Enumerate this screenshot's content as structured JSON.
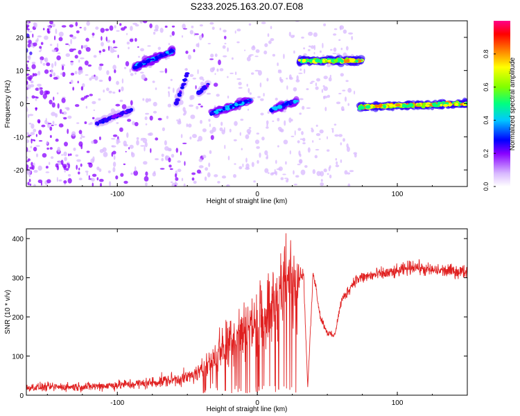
{
  "title": "S233.2025.163.20.07.E08",
  "colors": {
    "snr_line": "#e02020",
    "colormap": [
      "#ffffff",
      "#d8b8ff",
      "#8800ff",
      "#2b00ff",
      "#0000ff",
      "#00c8ff",
      "#00ff80",
      "#80ff00",
      "#ffff00",
      "#ff8000",
      "#ff0000",
      "#ff0088"
    ]
  },
  "chart_data": [
    {
      "type": "heatmap",
      "xlabel": "Height of straight line (km)",
      "ylabel": "Frequency (Hz)",
      "xlim": [
        -165,
        150
      ],
      "ylim": [
        -25,
        25
      ],
      "x_ticks": [
        -100,
        0,
        100
      ],
      "y_ticks": [
        -20,
        -10,
        0,
        10,
        20
      ],
      "colorbar": {
        "label": "Normalized spectral amplitude",
        "range": [
          0,
          1
        ],
        "ticks": [
          "0.0",
          "0.2",
          "0.4",
          "0.6",
          "0.8"
        ]
      },
      "features": [
        {
          "x": [
            -115,
            -90
          ],
          "y": [
            -6,
            -2
          ],
          "amplitude": 0.35
        },
        {
          "x": [
            -88,
            -60
          ],
          "y": [
            11,
            16
          ],
          "amplitude": 0.45
        },
        {
          "x": [
            -58,
            -50
          ],
          "y": [
            0,
            9
          ],
          "amplitude": 0.35
        },
        {
          "x": [
            -42,
            -35
          ],
          "y": [
            3,
            6
          ],
          "amplitude": 0.35
        },
        {
          "x": [
            -33,
            -5
          ],
          "y": [
            -3,
            1
          ],
          "amplitude": 0.5
        },
        {
          "x": [
            10,
            28
          ],
          "y": [
            -2,
            1
          ],
          "amplitude": 0.45
        },
        {
          "x": [
            30,
            75
          ],
          "y": [
            13,
            13
          ],
          "amplitude": 0.85
        },
        {
          "x": [
            73,
            150
          ],
          "y": [
            -1,
            0
          ],
          "amplitude": 0.85
        }
      ]
    },
    {
      "type": "line",
      "xlabel": "Height of straight line (km)",
      "ylabel": "SNR (10 * v/v)",
      "xlim": [
        -165,
        150
      ],
      "ylim": [
        0,
        425
      ],
      "x_ticks": [
        -100,
        0,
        100
      ],
      "y_ticks": [
        0,
        100,
        200,
        300,
        400
      ],
      "series": [
        {
          "x": [
            -165,
            -120,
            -80,
            -50,
            -40,
            -30,
            -20,
            -10,
            0,
            10,
            20,
            28,
            33,
            36,
            40,
            45,
            50,
            55,
            60,
            70,
            80,
            100,
            112,
            120,
            150
          ],
          "values": [
            20,
            22,
            30,
            45,
            60,
            100,
            150,
            170,
            190,
            225,
            280,
            305,
            310,
            20,
            320,
            200,
            160,
            150,
            240,
            295,
            305,
            315,
            330,
            320,
            315
          ]
        }
      ]
    }
  ]
}
